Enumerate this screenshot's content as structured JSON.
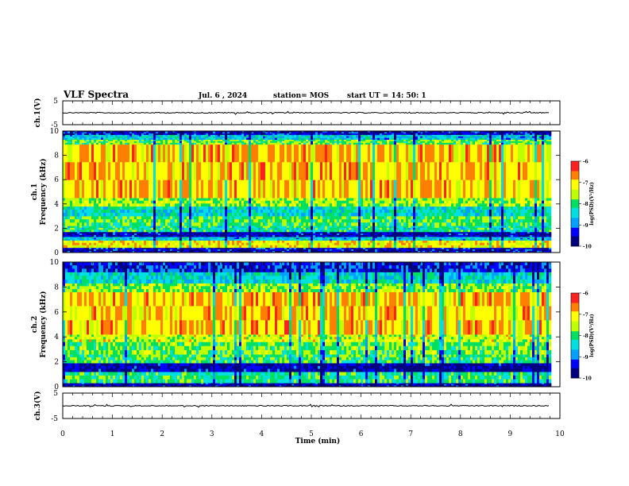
{
  "header": {
    "title": "VLF Spectra",
    "date": "Jul. 6 , 2024",
    "station": "station= MOS",
    "start": "start UT = 14: 50: 1"
  },
  "colors": {
    "background": "#ffffff",
    "axis": "#000000",
    "colormap": [
      "#00007f",
      "#0000ff",
      "#00a0ff",
      "#00e0e0",
      "#00e060",
      "#c0ff00",
      "#ffff00",
      "#ff8000",
      "#ff2020",
      "#ff3030",
      "#ffd0d0"
    ]
  },
  "chart_data": [
    {
      "type": "line",
      "name": "ch1-waveform",
      "ylabel": "ch.1(V)",
      "ylim": [
        -5,
        5
      ],
      "yticks": [
        "5",
        "-5"
      ],
      "x": [
        0,
        9.8
      ],
      "baseline": 0
    },
    {
      "type": "heatmap",
      "name": "ch1-spectrogram",
      "ylabel_line1": "ch.1",
      "ylabel_line2": "Frequency (kHz)",
      "ylim": [
        0,
        10
      ],
      "yticks": [
        "0",
        "2",
        "4",
        "6",
        "8",
        "10"
      ],
      "data_xlim": [
        0,
        9.8
      ],
      "bands": [
        {
          "f": [
            0.0,
            0.4
          ],
          "level": -9.5
        },
        {
          "f": [
            0.4,
            1.0
          ],
          "level": -7.2
        },
        {
          "f": [
            1.0,
            1.3
          ],
          "level": -8.6
        },
        {
          "f": [
            1.3,
            1.7
          ],
          "level": -9.6
        },
        {
          "f": [
            1.7,
            2.2
          ],
          "level": -8.2
        },
        {
          "f": [
            2.2,
            3.0
          ],
          "level": -7.9
        },
        {
          "f": [
            3.0,
            3.8
          ],
          "level": -8.4
        },
        {
          "f": [
            3.8,
            4.5
          ],
          "level": -7.6
        },
        {
          "f": [
            4.5,
            8.9
          ],
          "level": -6.9
        },
        {
          "f": [
            8.9,
            9.3
          ],
          "level": -7.8
        },
        {
          "f": [
            9.3,
            9.7
          ],
          "level": -8.6
        },
        {
          "f": [
            9.7,
            10.0
          ],
          "level": -9.5
        }
      ],
      "colorbar": {
        "ticks": [
          "-6",
          "-7",
          "-8",
          "-9",
          "-10"
        ],
        "label": "log(PSD)(V²/Hz)",
        "range": [
          -10,
          -6
        ]
      }
    },
    {
      "type": "heatmap",
      "name": "ch2-spectrogram",
      "ylabel_line1": "ch.2",
      "ylabel_line2": "Frequency (kHz)",
      "ylim": [
        0,
        10
      ],
      "yticks": [
        "0",
        "2",
        "4",
        "6",
        "8",
        "10"
      ],
      "data_xlim": [
        0,
        9.8
      ],
      "bands": [
        {
          "f": [
            0.0,
            0.3
          ],
          "level": -9.6
        },
        {
          "f": [
            0.3,
            1.2
          ],
          "level": -8.1
        },
        {
          "f": [
            1.2,
            1.9
          ],
          "level": -9.6
        },
        {
          "f": [
            1.9,
            2.6
          ],
          "level": -8.0
        },
        {
          "f": [
            2.6,
            3.6
          ],
          "level": -7.8
        },
        {
          "f": [
            3.6,
            4.2
          ],
          "level": -7.4
        },
        {
          "f": [
            4.2,
            7.6
          ],
          "level": -6.9
        },
        {
          "f": [
            7.6,
            8.3
          ],
          "level": -7.7
        },
        {
          "f": [
            8.3,
            9.2
          ],
          "level": -8.4
        },
        {
          "f": [
            9.2,
            10.0
          ],
          "level": -9.3
        }
      ],
      "colorbar": {
        "ticks": [
          "-6",
          "-7",
          "-8",
          "-9",
          "-10"
        ],
        "label": "log(PSD)(V²/Hz)",
        "range": [
          -10,
          -6
        ]
      }
    },
    {
      "type": "line",
      "name": "ch3-waveform",
      "ylabel": "ch.3(V)",
      "ylim": [
        -5,
        5
      ],
      "yticks": [
        "5",
        "-5"
      ],
      "x": [
        0,
        9.8
      ],
      "baseline": 0
    }
  ],
  "xaxis": {
    "label": "Time (min)",
    "xlim": [
      0,
      10
    ],
    "ticks": [
      "0",
      "1",
      "2",
      "3",
      "4",
      "5",
      "6",
      "7",
      "8",
      "9",
      "10"
    ]
  }
}
